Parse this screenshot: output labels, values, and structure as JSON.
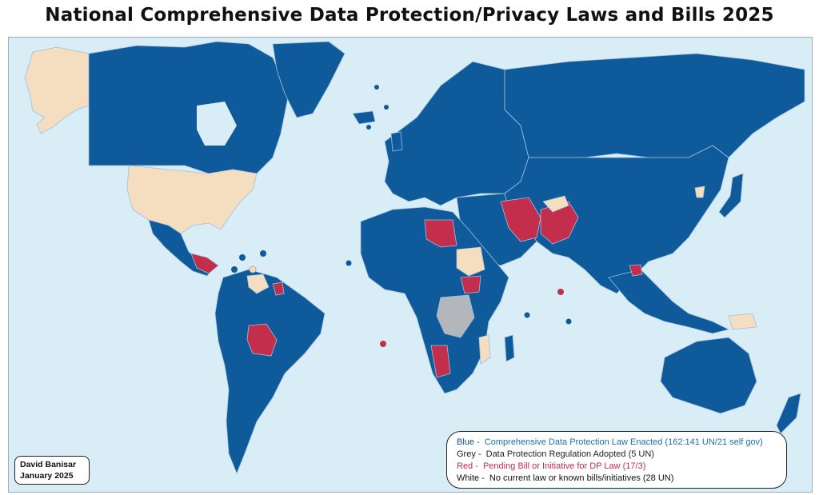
{
  "title": "National Comprehensive Data Protection/Privacy Laws and Bills 2025",
  "credit": {
    "author": "David Banisar",
    "date": "January 2025"
  },
  "legend": {
    "blue": {
      "key": "Blue -",
      "text": "Comprehensive Data Protection Law Enacted (162:141 UN/21 self gov)",
      "color": "#0f5a9a"
    },
    "grey": {
      "key": "Grey -",
      "text": "Data Protection Regulation Adopted (5 UN)",
      "color": "#b3b6ba"
    },
    "red": {
      "key": "Red -",
      "text": "Pending Bill or Initiative for DP Law (17/3)",
      "color": "#c22e4c"
    },
    "white": {
      "key": "White -",
      "text": "No current law or known bills/initiatives (28 UN)",
      "color": "#f5ddc0"
    }
  },
  "colors": {
    "ocean": "#d8edf5",
    "border": "#9fc0dc"
  }
}
